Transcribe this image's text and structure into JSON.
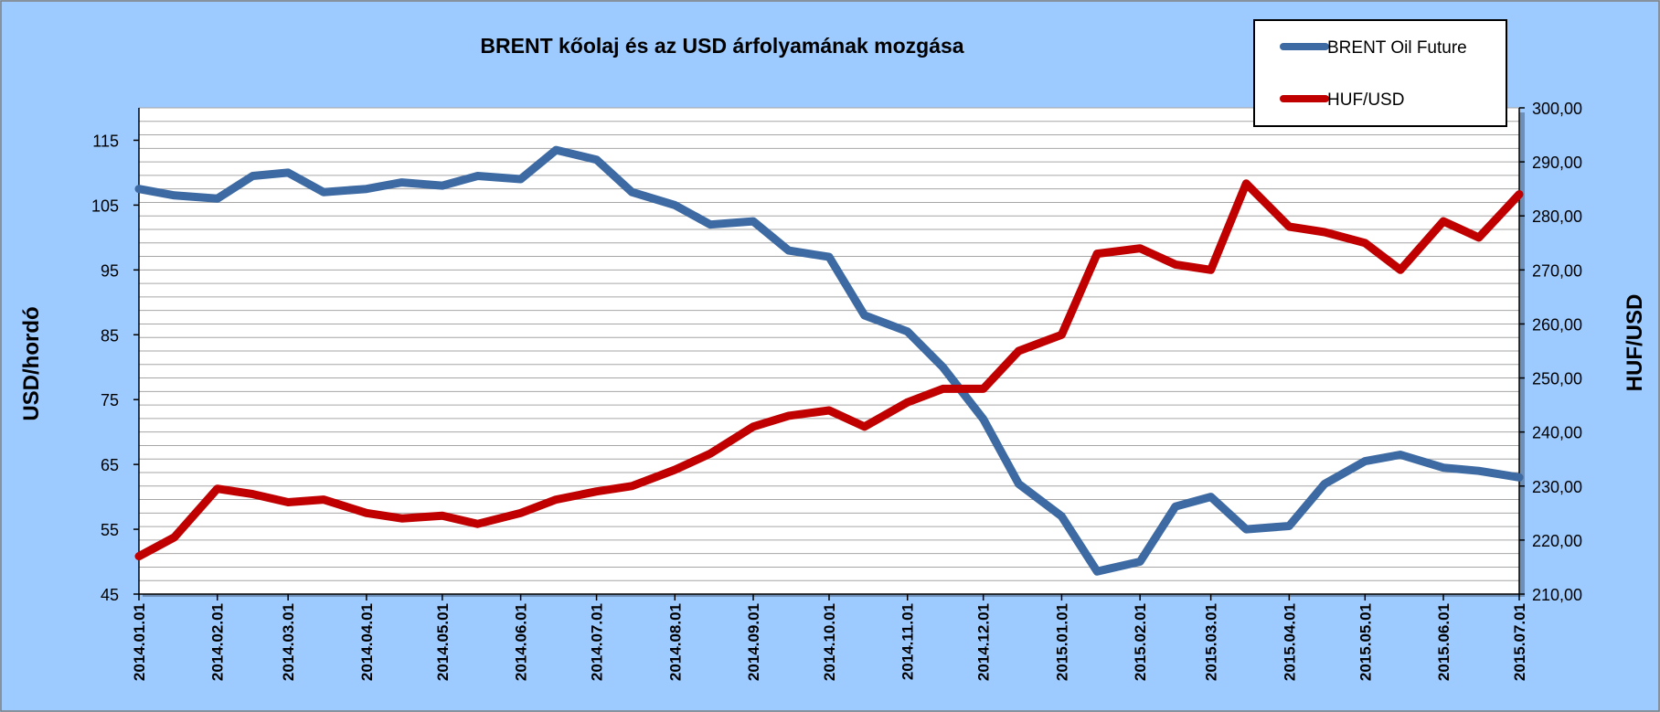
{
  "chart_data": {
    "type": "line",
    "title": "BRENT kőolaj és az USD árfolyamának mozgása",
    "ylabel_left": "USD/hordó",
    "ylabel_right": "HUF/USD",
    "ylim_left": [
      45,
      120
    ],
    "ylim_right": [
      210,
      300
    ],
    "yticks_left": [
      "45",
      "55",
      "65",
      "75",
      "85",
      "95",
      "105",
      "115"
    ],
    "yticks_right": [
      "210,00",
      "220,00",
      "230,00",
      "240,00",
      "250,00",
      "260,00",
      "270,00",
      "280,00",
      "290,00",
      "300,00"
    ],
    "x_labels": [
      "2014.01.01",
      "2014.02.01",
      "2014.03.01",
      "2014.04.01",
      "2014.05.01",
      "2014.06.01",
      "2014.07.01",
      "2014.08.01",
      "2014.09.01",
      "2014.10.01",
      "2014.11.01",
      "2014.12.01",
      "2015.01.01",
      "2015.02.01",
      "2015.03.01",
      "2015.04.01",
      "2015.05.01",
      "2015.06.01",
      "2015.07.01"
    ],
    "grid": true,
    "legend_position": "top-right",
    "series": [
      {
        "name": "BRENT Oil Future",
        "axis": "left",
        "color": "#3d6aa3",
        "x": [
          "2014.01.01",
          "2014.01.15",
          "2014.02.01",
          "2014.02.15",
          "2014.03.01",
          "2014.03.15",
          "2014.04.01",
          "2014.04.15",
          "2014.05.01",
          "2014.05.15",
          "2014.06.01",
          "2014.06.15",
          "2014.07.01",
          "2014.07.15",
          "2014.08.01",
          "2014.08.15",
          "2014.09.01",
          "2014.09.15",
          "2014.10.01",
          "2014.10.15",
          "2014.11.01",
          "2014.11.15",
          "2014.12.01",
          "2014.12.15",
          "2015.01.01",
          "2015.01.15",
          "2015.02.01",
          "2015.02.15",
          "2015.03.01",
          "2015.03.15",
          "2015.04.01",
          "2015.04.15",
          "2015.05.01",
          "2015.05.15",
          "2015.06.01",
          "2015.06.15",
          "2015.07.01"
        ],
        "values": [
          107.5,
          106.5,
          106.0,
          109.5,
          110.0,
          107.0,
          107.5,
          108.5,
          108.0,
          109.5,
          109.0,
          113.5,
          112.0,
          107.0,
          105.0,
          102.0,
          102.5,
          98.0,
          97.0,
          88.0,
          85.5,
          80.0,
          72.0,
          62.0,
          57.0,
          48.5,
          50.0,
          58.5,
          60.0,
          55.0,
          55.5,
          62.0,
          65.5,
          66.5,
          64.5,
          64.0,
          63.0
        ]
      },
      {
        "name": "HUF/USD",
        "axis": "right",
        "color": "#c00000",
        "x": [
          "2014.01.01",
          "2014.01.15",
          "2014.02.01",
          "2014.02.15",
          "2014.03.01",
          "2014.03.15",
          "2014.04.01",
          "2014.04.15",
          "2014.05.01",
          "2014.05.15",
          "2014.06.01",
          "2014.06.15",
          "2014.07.01",
          "2014.07.15",
          "2014.08.01",
          "2014.08.15",
          "2014.09.01",
          "2014.09.15",
          "2014.10.01",
          "2014.10.15",
          "2014.11.01",
          "2014.11.15",
          "2014.12.01",
          "2014.12.15",
          "2015.01.01",
          "2015.01.15",
          "2015.02.01",
          "2015.02.15",
          "2015.03.01",
          "2015.03.15",
          "2015.04.01",
          "2015.04.15",
          "2015.05.01",
          "2015.05.15",
          "2015.06.01",
          "2015.06.15",
          "2015.07.01"
        ],
        "values": [
          217.0,
          220.5,
          229.5,
          228.5,
          227.0,
          227.5,
          225.0,
          224.0,
          224.5,
          223.0,
          225.0,
          227.5,
          229.0,
          230.0,
          233.0,
          236.0,
          241.0,
          243.0,
          244.0,
          241.0,
          245.5,
          248.0,
          248.0,
          255.0,
          258.0,
          273.0,
          274.0,
          271.0,
          270.0,
          286.0,
          278.0,
          277.0,
          275.0,
          270.0,
          279.0,
          276.0,
          284.0
        ]
      }
    ]
  }
}
